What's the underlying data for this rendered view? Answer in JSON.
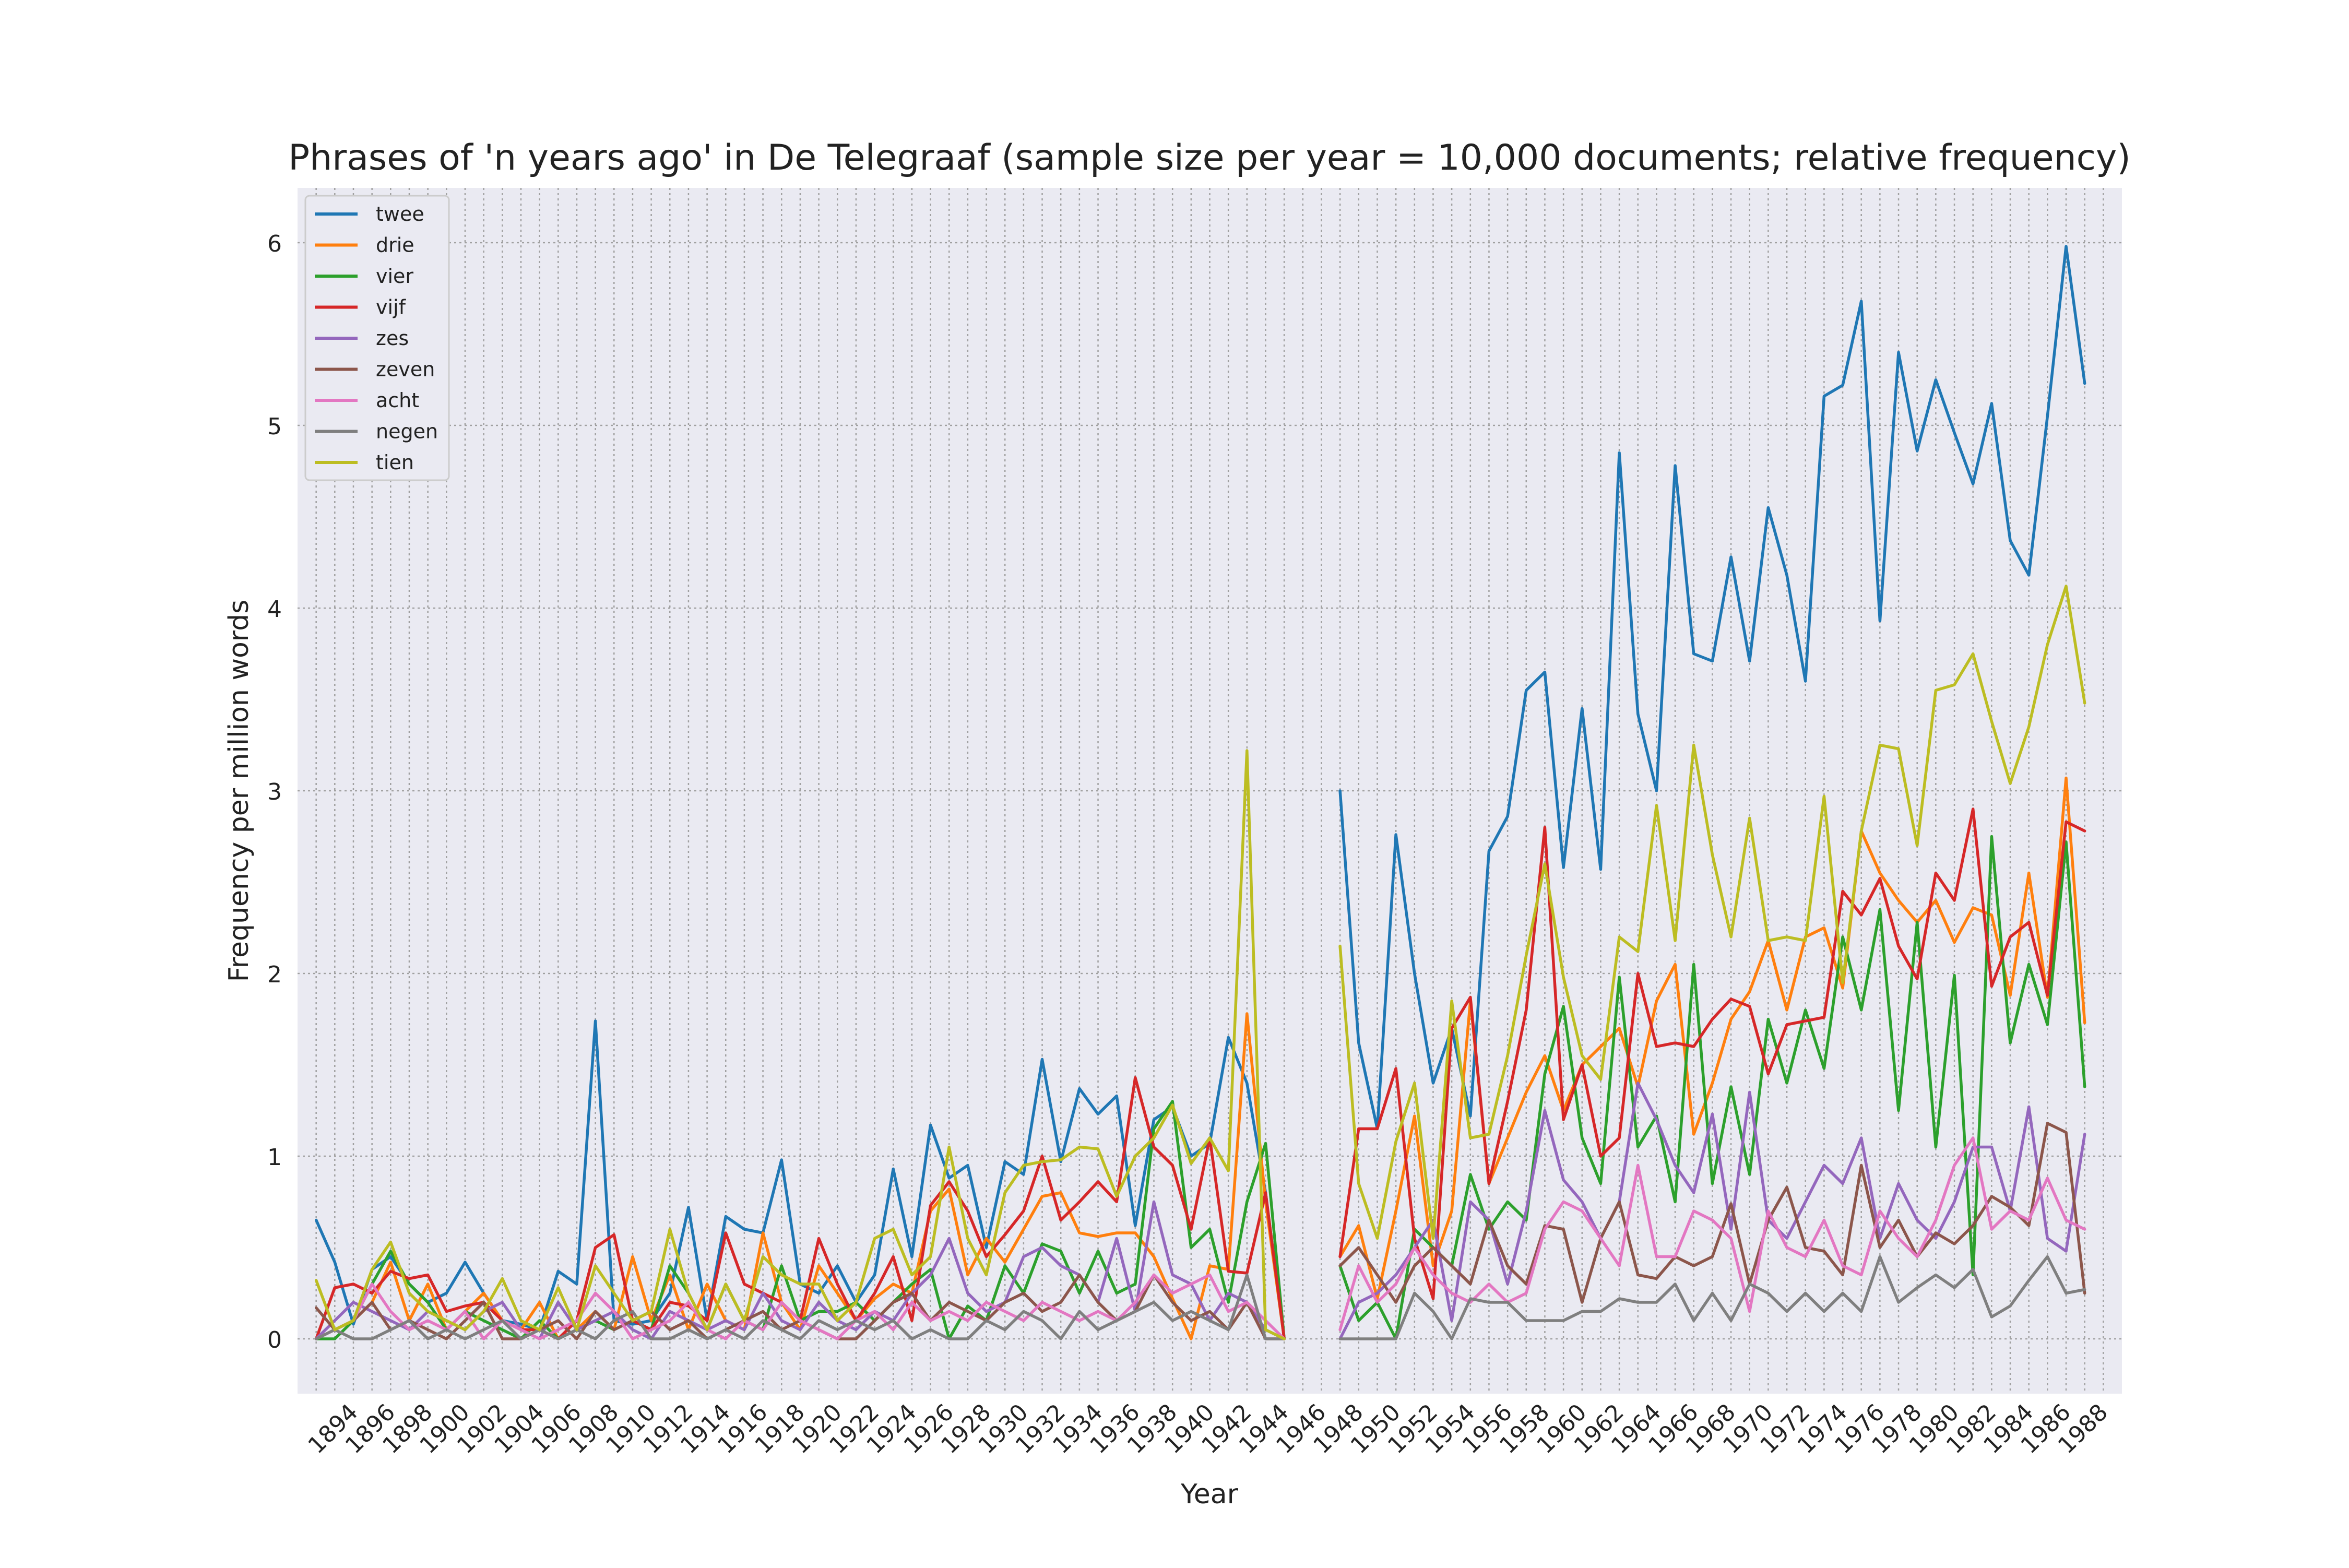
{
  "chart_data": {
    "type": "line",
    "title": "Phrases of 'n years ago' in De Telegraaf (sample size per year = 10,000 documents; relative frequency)",
    "xlabel": "Year",
    "ylabel": "Frequency per million words",
    "xlim": [
      1892,
      1990
    ],
    "ylim": [
      -0.3,
      6.3
    ],
    "grid": true,
    "legend_position": "top-left",
    "x_ticks": [
      1894,
      1896,
      1898,
      1900,
      1902,
      1904,
      1906,
      1908,
      1910,
      1912,
      1914,
      1916,
      1918,
      1920,
      1922,
      1924,
      1926,
      1928,
      1930,
      1932,
      1934,
      1936,
      1938,
      1940,
      1942,
      1944,
      1946,
      1948,
      1950,
      1952,
      1954,
      1956,
      1958,
      1960,
      1962,
      1964,
      1966,
      1968,
      1970,
      1972,
      1974,
      1976,
      1978,
      1980,
      1982,
      1984,
      1986,
      1988
    ],
    "y_ticks": [
      0,
      1,
      2,
      3,
      4,
      5,
      6
    ],
    "years": [
      1893,
      1894,
      1895,
      1896,
      1897,
      1898,
      1899,
      1900,
      1901,
      1902,
      1903,
      1904,
      1905,
      1906,
      1907,
      1908,
      1909,
      1910,
      1911,
      1912,
      1913,
      1914,
      1915,
      1916,
      1917,
      1918,
      1919,
      1920,
      1921,
      1922,
      1923,
      1924,
      1925,
      1926,
      1927,
      1928,
      1929,
      1930,
      1931,
      1932,
      1933,
      1934,
      1935,
      1936,
      1937,
      1938,
      1939,
      1940,
      1941,
      1942,
      1943,
      1944,
      1945,
      1946,
      1947,
      1948,
      1949,
      1950,
      1951,
      1952,
      1953,
      1954,
      1955,
      1956,
      1957,
      1958,
      1959,
      1960,
      1961,
      1962,
      1963,
      1964,
      1965,
      1966,
      1967,
      1968,
      1969,
      1970,
      1971,
      1972,
      1973,
      1974,
      1975,
      1976,
      1977,
      1978,
      1979,
      1980,
      1981,
      1982,
      1983,
      1984,
      1985,
      1986,
      1987,
      1988,
      1989
    ],
    "series": [
      {
        "name": "twee",
        "color": "#1f77b4",
        "values": [
          0.65,
          0.42,
          0.08,
          0.38,
          0.45,
          0.3,
          0.2,
          0.25,
          0.42,
          0.25,
          0.1,
          0.08,
          0.05,
          0.37,
          0.3,
          1.74,
          0.1,
          0.08,
          0.1,
          0.25,
          0.72,
          0.1,
          0.67,
          0.6,
          0.58,
          0.98,
          0.3,
          0.25,
          0.4,
          0.2,
          0.35,
          0.93,
          0.45,
          1.17,
          0.88,
          0.95,
          0.5,
          0.97,
          0.9,
          1.53,
          0.97,
          1.37,
          1.23,
          1.33,
          0.62,
          1.2,
          1.27,
          1.0,
          1.07,
          1.65,
          1.4,
          0.8,
          0,
          null,
          null,
          3.0,
          1.62,
          1.15,
          2.76,
          2.0,
          1.4,
          1.7,
          1.22,
          2.67,
          2.86,
          3.55,
          3.65,
          2.58,
          3.45,
          2.57,
          4.85,
          3.42,
          3.0,
          4.78,
          3.75,
          3.71,
          4.28,
          3.71,
          4.55,
          4.18,
          3.6,
          5.16,
          5.22,
          5.68,
          3.93,
          5.4,
          4.86,
          5.25,
          4.96,
          4.68,
          5.12,
          4.37,
          4.18,
          5.05,
          5.98,
          5.23
        ]
      },
      {
        "name": "drie",
        "color": "#ff7f0e",
        "values": [
          0,
          0.05,
          0.1,
          0.2,
          0.42,
          0.1,
          0.3,
          0.05,
          0.15,
          0.25,
          0.1,
          0.05,
          0.2,
          0,
          0.05,
          0.15,
          0.05,
          0.45,
          0.1,
          0.35,
          0.05,
          0.3,
          0.1,
          0.05,
          0.58,
          0.2,
          0.05,
          0.4,
          0.25,
          0.1,
          0.22,
          0.3,
          0.25,
          0.7,
          0.82,
          0.35,
          0.55,
          0.42,
          0.6,
          0.78,
          0.8,
          0.58,
          0.56,
          0.58,
          0.58,
          0.45,
          0.22,
          0,
          0.4,
          0.38,
          1.78,
          0.75,
          0,
          null,
          null,
          0.45,
          0.62,
          0.22,
          0.7,
          1.22,
          0.4,
          0.7,
          1.85,
          0.85,
          1.1,
          1.35,
          1.55,
          1.25,
          1.5,
          1.6,
          1.7,
          1.38,
          1.85,
          2.05,
          1.12,
          1.4,
          1.75,
          1.9,
          2.18,
          1.8,
          2.2,
          2.25,
          1.92,
          2.78,
          2.55,
          2.4,
          2.28,
          2.4,
          2.17,
          2.36,
          2.32,
          1.88,
          2.55,
          1.87,
          3.07,
          1.73
        ]
      },
      {
        "name": "vier",
        "color": "#2ca02c",
        "values": [
          0,
          0,
          0.1,
          0.3,
          0.48,
          0.3,
          0.2,
          0.05,
          0.15,
          0.1,
          0.05,
          0,
          0.1,
          0,
          0.05,
          0.1,
          0.05,
          0.1,
          0.05,
          0.4,
          0.25,
          0.05,
          0.3,
          0.1,
          0.05,
          0.4,
          0.1,
          0.15,
          0.15,
          0.2,
          0.1,
          0.2,
          0.3,
          0.38,
          0,
          0.18,
          0.1,
          0.4,
          0.25,
          0.52,
          0.48,
          0.25,
          0.48,
          0.25,
          0.3,
          1.15,
          1.3,
          0.5,
          0.6,
          0.2,
          0.75,
          1.07,
          0,
          null,
          null,
          0.4,
          0.1,
          0.2,
          0,
          0.6,
          0.5,
          0.4,
          0.9,
          0.6,
          0.75,
          0.65,
          1.45,
          1.82,
          1.1,
          0.85,
          1.98,
          1.05,
          1.22,
          0.75,
          2.05,
          0.85,
          1.38,
          0.9,
          1.75,
          1.4,
          1.8,
          1.48,
          2.2,
          1.8,
          2.35,
          1.25,
          2.28,
          1.05,
          1.99,
          0.35,
          2.75,
          1.62,
          2.05,
          1.72,
          2.72,
          1.38
        ]
      },
      {
        "name": "vijf",
        "color": "#d62728",
        "values": [
          0,
          0.28,
          0.3,
          0.25,
          0.37,
          0.33,
          0.35,
          0.15,
          0.18,
          0.2,
          0.1,
          0.05,
          0.05,
          0,
          0.1,
          0.5,
          0.57,
          0.1,
          0.05,
          0.2,
          0.18,
          0.1,
          0.58,
          0.3,
          0.25,
          0.2,
          0.1,
          0.55,
          0.3,
          0.1,
          0.25,
          0.45,
          0.1,
          0.73,
          0.86,
          0.7,
          0.45,
          0.57,
          0.7,
          1.0,
          0.65,
          0.75,
          0.86,
          0.75,
          1.43,
          1.05,
          0.95,
          0.6,
          1.1,
          0.37,
          0.36,
          0.8,
          0,
          null,
          null,
          0.45,
          1.15,
          1.15,
          1.48,
          0.55,
          0.22,
          1.7,
          1.87,
          0.85,
          1.3,
          1.8,
          2.8,
          1.2,
          1.5,
          1.0,
          1.1,
          2.0,
          1.6,
          1.62,
          1.6,
          1.75,
          1.86,
          1.82,
          1.45,
          1.72,
          1.74,
          1.76,
          2.45,
          2.32,
          2.52,
          2.15,
          1.97,
          2.55,
          2.4,
          2.9,
          1.93,
          2.2,
          2.28,
          1.88,
          2.83,
          2.78
        ]
      },
      {
        "name": "zes",
        "color": "#9467bd",
        "values": [
          0,
          0.1,
          0.2,
          0.15,
          0.1,
          0.05,
          0.15,
          0.1,
          0.05,
          0.15,
          0.2,
          0.05,
          0,
          0.2,
          0.05,
          0.1,
          0.15,
          0.05,
          0,
          0.15,
          0.1,
          0.05,
          0.1,
          0.05,
          0.25,
          0.1,
          0.05,
          0.2,
          0.1,
          0.05,
          0.15,
          0.1,
          0.25,
          0.35,
          0.55,
          0.25,
          0.15,
          0.2,
          0.45,
          0.5,
          0.4,
          0.35,
          0.2,
          0.55,
          0.15,
          0.75,
          0.35,
          0.3,
          0.1,
          0.25,
          0.2,
          0.05,
          0,
          null,
          null,
          0,
          0.2,
          0.25,
          0.35,
          0.5,
          0.65,
          0.1,
          0.75,
          0.65,
          0.3,
          0.7,
          1.25,
          0.87,
          0.75,
          0.55,
          0.75,
          1.4,
          1.2,
          0.95,
          0.8,
          1.23,
          0.6,
          1.35,
          0.65,
          0.55,
          0.75,
          0.95,
          0.85,
          1.1,
          0.55,
          0.85,
          0.65,
          0.55,
          0.75,
          1.05,
          1.05,
          0.7,
          1.27,
          0.55,
          0.48,
          1.12
        ]
      },
      {
        "name": "zeven",
        "color": "#8c564b",
        "values": [
          0.17,
          0.05,
          0.1,
          0.2,
          0.05,
          0.1,
          0.05,
          0,
          0.1,
          0.2,
          0,
          0,
          0.05,
          0.1,
          0,
          0.15,
          0.05,
          0.1,
          0.15,
          0.05,
          0.1,
          0,
          0.05,
          0.1,
          0.15,
          0.05,
          0.1,
          0.05,
          0,
          0,
          0.1,
          0.2,
          0.25,
          0.1,
          0.2,
          0.15,
          0.1,
          0.2,
          0.25,
          0.15,
          0.2,
          0.35,
          0.2,
          0.1,
          0.15,
          0.35,
          0.2,
          0.1,
          0.15,
          0.05,
          0.2,
          0,
          0,
          null,
          null,
          0.4,
          0.5,
          0.35,
          0.2,
          0.4,
          0.5,
          0.4,
          0.3,
          0.65,
          0.4,
          0.3,
          0.62,
          0.6,
          0.2,
          0.55,
          0.75,
          0.35,
          0.33,
          0.45,
          0.4,
          0.45,
          0.74,
          0.3,
          0.65,
          0.83,
          0.5,
          0.48,
          0.35,
          0.95,
          0.5,
          0.65,
          0.45,
          0.58,
          0.52,
          0.62,
          0.78,
          0.72,
          0.62,
          1.18,
          1.13,
          0.25
        ]
      },
      {
        "name": "acht",
        "color": "#e377c2",
        "values": [
          0,
          0.05,
          0.1,
          0.3,
          0.15,
          0.05,
          0.1,
          0.05,
          0.15,
          0,
          0.1,
          0.05,
          0,
          0.05,
          0.1,
          0.25,
          0.15,
          0,
          0.05,
          0.1,
          0.2,
          0.05,
          0,
          0.1,
          0.05,
          0.2,
          0.1,
          0.05,
          0,
          0.1,
          0.15,
          0.05,
          0.2,
          0.1,
          0.15,
          0.1,
          0.2,
          0.15,
          0.1,
          0.2,
          0.15,
          0.1,
          0.15,
          0.1,
          0.2,
          0.35,
          0.25,
          0.3,
          0.35,
          0.15,
          0.2,
          0.1,
          0,
          null,
          null,
          0.05,
          0.4,
          0.2,
          0.3,
          0.5,
          0.35,
          0.25,
          0.2,
          0.3,
          0.2,
          0.25,
          0.6,
          0.75,
          0.7,
          0.55,
          0.4,
          0.95,
          0.45,
          0.45,
          0.7,
          0.65,
          0.55,
          0.15,
          0.7,
          0.5,
          0.45,
          0.65,
          0.4,
          0.35,
          0.7,
          0.55,
          0.45,
          0.65,
          0.95,
          1.1,
          0.6,
          0.7,
          0.65,
          0.88,
          0.65,
          0.6
        ]
      },
      {
        "name": "negen",
        "color": "#7f7f7f",
        "values": [
          0,
          0.05,
          0,
          0,
          0.05,
          0.1,
          0,
          0.05,
          0,
          0.05,
          0.1,
          0,
          0.05,
          0,
          0.05,
          0,
          0.1,
          0.15,
          0,
          0,
          0.05,
          0,
          0.05,
          0,
          0.1,
          0.05,
          0,
          0.1,
          0.05,
          0.1,
          0.05,
          0.1,
          0,
          0.05,
          0,
          0,
          0.1,
          0.05,
          0.15,
          0.1,
          0,
          0.15,
          0.05,
          0.1,
          0.15,
          0.2,
          0.1,
          0.15,
          0.1,
          0.05,
          0.35,
          0,
          0,
          null,
          null,
          0,
          0,
          0,
          0,
          0.25,
          0.15,
          0,
          0.22,
          0.2,
          0.2,
          0.1,
          0.1,
          0.1,
          0.15,
          0.15,
          0.22,
          0.2,
          0.2,
          0.3,
          0.1,
          0.25,
          0.1,
          0.3,
          0.25,
          0.15,
          0.25,
          0.15,
          0.25,
          0.15,
          0.45,
          0.2,
          0.28,
          0.35,
          0.28,
          0.38,
          0.12,
          0.18,
          0.32,
          0.45,
          0.25,
          0.27
        ]
      },
      {
        "name": "tien",
        "color": "#bcbd22",
        "values": [
          0.32,
          0.05,
          0.1,
          0.38,
          0.53,
          0.25,
          0.15,
          0.1,
          0.05,
          0.15,
          0.33,
          0.1,
          0.05,
          0.28,
          0.05,
          0.4,
          0.25,
          0.1,
          0.15,
          0.6,
          0.25,
          0.05,
          0.3,
          0.1,
          0.45,
          0.35,
          0.3,
          0.3,
          0.1,
          0.2,
          0.55,
          0.6,
          0.35,
          0.45,
          1.05,
          0.55,
          0.35,
          0.8,
          0.95,
          0.97,
          0.98,
          1.05,
          1.04,
          0.78,
          1.0,
          1.1,
          1.28,
          0.96,
          1.1,
          0.92,
          3.22,
          0.05,
          0,
          null,
          null,
          2.15,
          0.85,
          0.55,
          1.08,
          1.4,
          0.55,
          1.85,
          1.1,
          1.12,
          1.55,
          2.1,
          2.6,
          1.98,
          1.55,
          1.42,
          2.2,
          2.12,
          2.92,
          2.18,
          3.25,
          2.65,
          2.2,
          2.85,
          2.18,
          2.2,
          2.18,
          2.97,
          1.95,
          2.78,
          3.25,
          3.23,
          2.7,
          3.55,
          3.58,
          3.75,
          3.38,
          3.04,
          3.35,
          3.8,
          4.12,
          3.48
        ]
      }
    ]
  }
}
